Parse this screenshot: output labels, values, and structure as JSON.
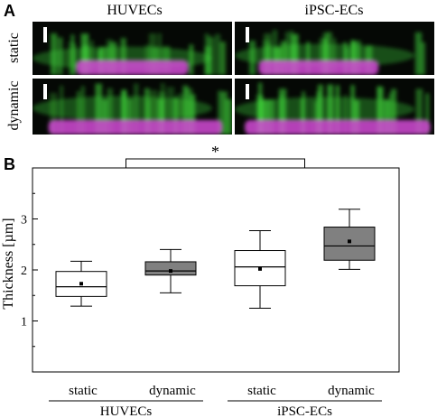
{
  "panel_a": {
    "label": "A",
    "columns": [
      "HUVECs",
      "iPSC-ECs"
    ],
    "rows": [
      "static",
      "dynamic"
    ],
    "colors": {
      "background": "#050805",
      "green": "#3fd13a",
      "magenta": "#d24ad6"
    }
  },
  "chart_data": {
    "type": "box",
    "panel_label": "B",
    "ylabel": "Thickness [µm]",
    "ylim": [
      0,
      4
    ],
    "yticks": [
      1,
      2,
      3
    ],
    "categories": [
      "static",
      "dynamic",
      "static",
      "dynamic"
    ],
    "groups": [
      {
        "label": "HUVECs",
        "categories": [
          0,
          1
        ]
      },
      {
        "label": "iPSC-ECs",
        "categories": [
          2,
          3
        ]
      }
    ],
    "boxes": [
      {
        "category": "static",
        "group": "HUVECs",
        "whisker_low": 1.29,
        "q1": 1.48,
        "median": 1.67,
        "q3": 1.97,
        "whisker_high": 2.17,
        "mean": 1.73,
        "fill": "#ffffff"
      },
      {
        "category": "dynamic",
        "group": "HUVECs",
        "whisker_low": 1.55,
        "q1": 1.9,
        "median": 1.98,
        "q3": 2.16,
        "whisker_high": 2.4,
        "mean": 1.98,
        "fill": "#808080"
      },
      {
        "category": "static",
        "group": "iPSC-ECs",
        "whisker_low": 1.25,
        "q1": 1.69,
        "median": 2.06,
        "q3": 2.38,
        "whisker_high": 2.77,
        "mean": 2.02,
        "fill": "#ffffff"
      },
      {
        "category": "dynamic",
        "group": "iPSC-ECs",
        "whisker_low": 2.01,
        "q1": 2.19,
        "median": 2.47,
        "q3": 2.84,
        "whisker_high": 3.19,
        "mean": 2.56,
        "fill": "#808080"
      }
    ],
    "significance": {
      "label": "*",
      "between": [
        "HUVECs",
        "iPSC-ECs"
      ]
    }
  }
}
